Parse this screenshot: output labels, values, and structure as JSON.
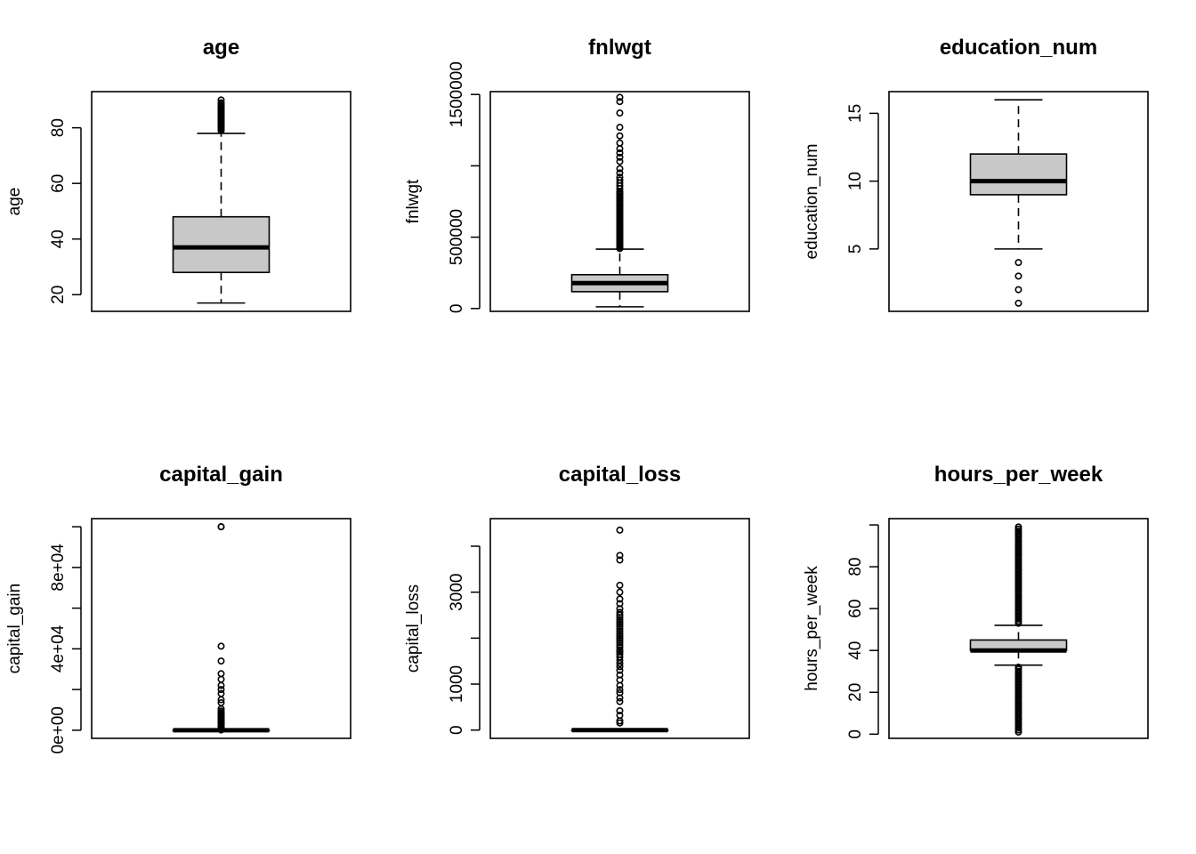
{
  "chart_data": [
    {
      "type": "boxplot",
      "title": "age",
      "ylabel": "age",
      "ylim": [
        14,
        93
      ],
      "ticks": [
        20,
        40,
        60,
        80
      ],
      "tick_labels": [
        "20",
        "40",
        "60",
        "80"
      ],
      "box": {
        "whisker_low": 17,
        "q1": 28,
        "median": 37,
        "q3": 48,
        "whisker_high": 78
      },
      "outliers": [
        79,
        79.5,
        80,
        80.5,
        81,
        81.5,
        82,
        82.5,
        83,
        83.5,
        84,
        84.5,
        85,
        85.5,
        86,
        86.5,
        87,
        87.5,
        88,
        88.5,
        89,
        90
      ]
    },
    {
      "type": "boxplot",
      "title": "fnlwgt",
      "ylabel": "fnlwgt",
      "ylim": [
        -20000,
        1520000
      ],
      "ticks": [
        0,
        500000,
        1000000,
        1500000
      ],
      "tick_labels": [
        "0",
        "500000",
        "",
        "1500000"
      ],
      "box": {
        "whisker_low": 12000,
        "q1": 118000,
        "median": 178000,
        "q3": 237000,
        "whisker_high": 416000
      },
      "outliers": [
        420000,
        430000,
        440000,
        450000,
        460000,
        470000,
        480000,
        490000,
        500000,
        510000,
        520000,
        530000,
        540000,
        550000,
        560000,
        570000,
        580000,
        590000,
        600000,
        610000,
        620000,
        630000,
        640000,
        650000,
        660000,
        670000,
        680000,
        690000,
        700000,
        710000,
        720000,
        730000,
        740000,
        750000,
        760000,
        770000,
        780000,
        790000,
        800000,
        810000,
        820000,
        840000,
        860000,
        880000,
        900000,
        920000,
        950000,
        980000,
        1030000,
        1060000,
        1090000,
        1120000,
        1160000,
        1210000,
        1270000,
        1370000,
        1450000,
        1480000
      ]
    },
    {
      "type": "boxplot",
      "title": "education_num",
      "ylabel": "education_num",
      "ylim": [
        0.4,
        16.6
      ],
      "ticks": [
        5,
        10,
        15
      ],
      "tick_labels": [
        "5",
        "10",
        "15"
      ],
      "box": {
        "whisker_low": 5,
        "q1": 9,
        "median": 10,
        "q3": 12,
        "whisker_high": 16
      },
      "outliers": [
        1,
        2,
        3,
        4
      ]
    },
    {
      "type": "boxplot",
      "title": "capital_gain",
      "ylabel": "capital_gain",
      "ylim": [
        -4000,
        104000
      ],
      "ticks": [
        0,
        20000,
        40000,
        60000,
        80000,
        100000
      ],
      "tick_labels": [
        "0e+00",
        "",
        "4e+04",
        "",
        "8e+04",
        ""
      ],
      "box": {
        "whisker_low": 0,
        "q1": 0,
        "median": 0,
        "q3": 0,
        "whisker_high": 0
      },
      "outliers": [
        114,
        400,
        800,
        1200,
        1600,
        2000,
        2400,
        2800,
        3200,
        3600,
        4000,
        4400,
        4800,
        5200,
        5600,
        6000,
        6500,
        7000,
        7500,
        8000,
        8600,
        9400,
        10500,
        13500,
        15000,
        18000,
        20000,
        22000,
        25000,
        27800,
        34000,
        41300,
        99999,
        100000
      ]
    },
    {
      "type": "boxplot",
      "title": "capital_loss",
      "ylabel": "capital_loss",
      "ylim": [
        -180,
        4600
      ],
      "ticks": [
        0,
        1000,
        2000,
        3000,
        4000
      ],
      "tick_labels": [
        "0",
        "1000",
        "",
        "3000",
        ""
      ],
      "box": {
        "whisker_low": 0,
        "q1": 0,
        "median": 0,
        "q3": 0,
        "whisker_high": 0
      },
      "outliers": [
        155,
        200,
        320,
        420,
        620,
        700,
        810,
        880,
        970,
        1090,
        1200,
        1300,
        1380,
        1450,
        1520,
        1590,
        1650,
        1700,
        1740,
        1800,
        1850,
        1900,
        1950,
        2000,
        2050,
        2100,
        2150,
        2200,
        2250,
        2300,
        2350,
        2400,
        2450,
        2500,
        2560,
        2640,
        2750,
        2850,
        3000,
        3150,
        3700,
        3800,
        4350
      ]
    },
    {
      "type": "boxplot",
      "title": "hours_per_week",
      "ylabel": "hours_per_week",
      "ylim": [
        -2,
        103
      ],
      "ticks": [
        0,
        20,
        40,
        60,
        80,
        100
      ],
      "tick_labels": [
        "0",
        "20",
        "40",
        "60",
        "80",
        ""
      ],
      "box": {
        "whisker_low": 33,
        "q1": 40,
        "median": 40,
        "q3": 45,
        "whisker_high": 52
      },
      "outliers": [
        1,
        2,
        3,
        4,
        5,
        6,
        7,
        8,
        9,
        10,
        11,
        12,
        13,
        14,
        15,
        16,
        17,
        18,
        19,
        20,
        21,
        22,
        23,
        24,
        25,
        26,
        27,
        28,
        29,
        30,
        31,
        32,
        53,
        54,
        55,
        56,
        57,
        58,
        59,
        60,
        61,
        62,
        63,
        64,
        65,
        66,
        67,
        68,
        69,
        70,
        71,
        72,
        73,
        74,
        75,
        76,
        77,
        78,
        79,
        80,
        81,
        82,
        83,
        84,
        85,
        86,
        87,
        88,
        89,
        90,
        91,
        92,
        93,
        94,
        95,
        96,
        97,
        98,
        99
      ]
    }
  ]
}
